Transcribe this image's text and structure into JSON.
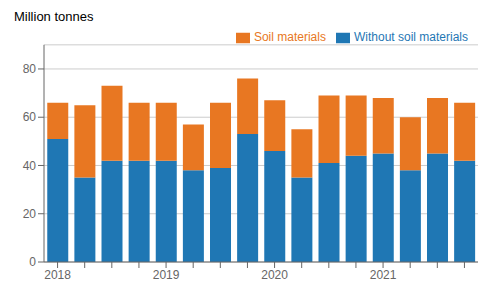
{
  "chart_data": {
    "type": "bar",
    "title": "Million tonnes",
    "categories": [
      "2018",
      null,
      null,
      null,
      "2019",
      null,
      null,
      null,
      "2020",
      null,
      null,
      null,
      "2021",
      null,
      null,
      null
    ],
    "series": [
      {
        "name": "Without soil materials",
        "color": "#1f77b4",
        "values": [
          51,
          35,
          42,
          42,
          42,
          38,
          39,
          53,
          46,
          35,
          41,
          44,
          45,
          38,
          45,
          42
        ]
      },
      {
        "name": "Soil materials",
        "color": "#E87722",
        "values": [
          15,
          30,
          31,
          24,
          24,
          19,
          27,
          23,
          21,
          20,
          28,
          25,
          23,
          22,
          23,
          24
        ]
      }
    ],
    "stacked": true,
    "ylim": [
      0,
      90
    ],
    "yticks": [
      0,
      20,
      40,
      60,
      80
    ],
    "grid": true,
    "legend": "upper right"
  }
}
